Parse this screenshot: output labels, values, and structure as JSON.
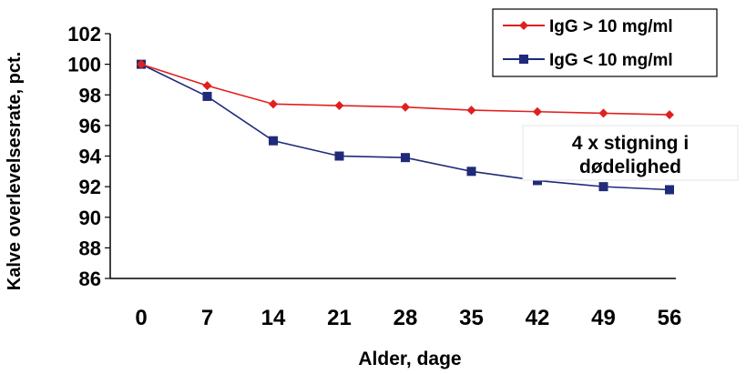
{
  "chart_data": {
    "type": "line",
    "xlabel": "Alder, dage",
    "ylabel": "Kalve overlevelsesrate, pct.",
    "categories": [
      "0",
      "7",
      "14",
      "21",
      "28",
      "35",
      "42",
      "49",
      "56"
    ],
    "ylim": [
      86,
      102
    ],
    "yticks": [
      "86",
      "88",
      "90",
      "92",
      "94",
      "96",
      "98",
      "100",
      "102"
    ],
    "grid": false,
    "legend_position": "top-right",
    "series": [
      {
        "name": "IgG > 10 mg/ml",
        "color": "#e0201e",
        "marker": "diamond",
        "values": [
          100,
          98.6,
          97.4,
          97.3,
          97.2,
          97.0,
          96.9,
          96.8,
          96.7
        ]
      },
      {
        "name": "IgG < 10 mg/ml",
        "color": "#1f2a7a",
        "marker": "square",
        "values": [
          100,
          97.9,
          95.0,
          94.0,
          93.9,
          93.0,
          92.4,
          92.0,
          91.8
        ]
      }
    ],
    "annotation": {
      "line1": "4 x stigning i",
      "line2": "dødelighed"
    }
  }
}
